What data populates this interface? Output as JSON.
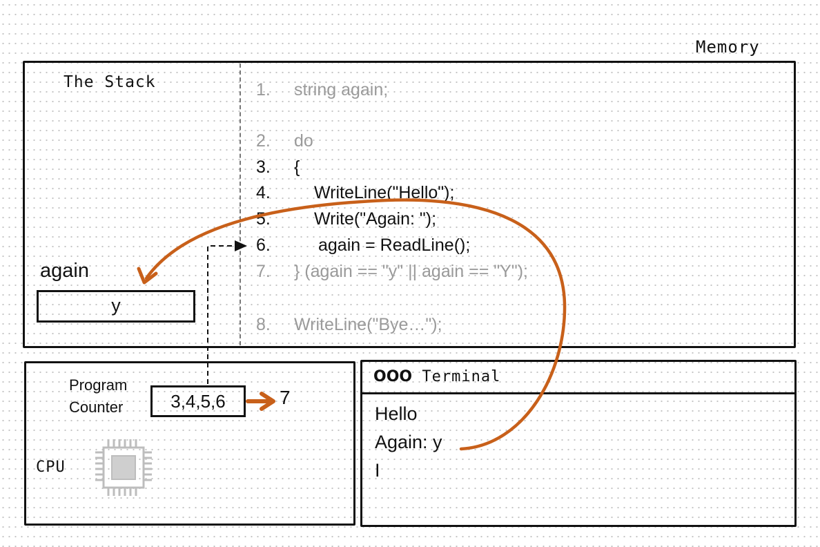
{
  "memory": {
    "label": "Memory"
  },
  "stack": {
    "label": "The Stack",
    "variable": {
      "name": "again",
      "value": "y"
    }
  },
  "code": [
    {
      "num": "1.",
      "text": "string again;",
      "active": false
    },
    {
      "num": "2.",
      "text": "do",
      "active": false
    },
    {
      "num": "3.",
      "text": "{",
      "active": true
    },
    {
      "num": "4.",
      "text": "WriteLine(\"Hello\");",
      "active": true
    },
    {
      "num": "5.",
      "text": "Write(\"Again: \");",
      "active": true
    },
    {
      "num": "6.",
      "text": "again = ReadLine();",
      "active": true
    },
    {
      "num": "7.",
      "text": "} (again == \"y\" || again == \"Y\");",
      "active": false
    },
    {
      "num": "8.",
      "text": "WriteLine(\"Bye…\");",
      "active": false
    }
  ],
  "cpu": {
    "label": "CPU",
    "program_counter_label_line1": "Program",
    "program_counter_label_line2": "Counter",
    "program_counter_value": "3,4,5,6",
    "program_counter_next": "7"
  },
  "terminal": {
    "icon_text": "OOO",
    "title": "Terminal",
    "lines": [
      "Hello",
      "Again: y",
      "I"
    ]
  },
  "colors": {
    "arrow": "#c8601a",
    "active_code": "#111111",
    "inactive_code": "#9a9a9a",
    "chip": "#bdbdbd"
  }
}
